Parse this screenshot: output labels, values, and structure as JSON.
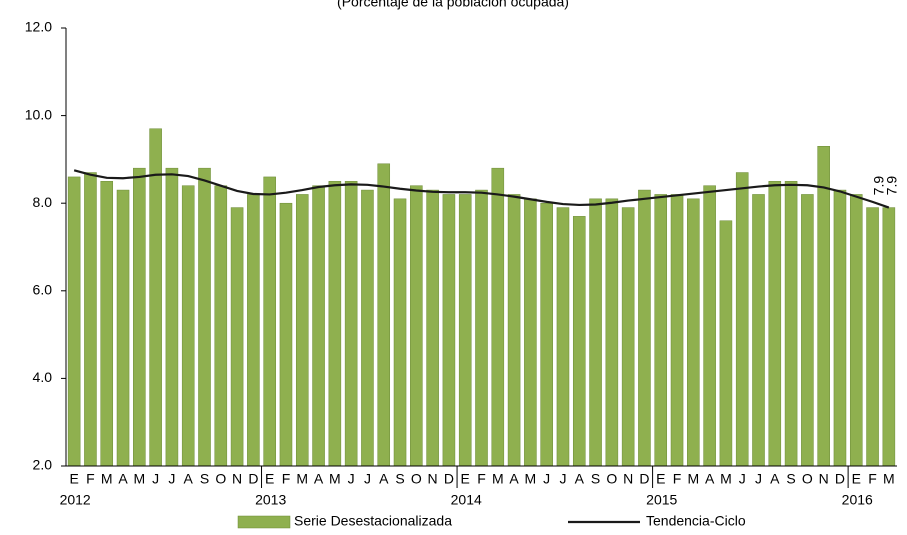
{
  "chart_data": {
    "type": "bar",
    "subtitle": "(Porcentaje de la población ocupada)",
    "categories": [
      "E",
      "F",
      "M",
      "A",
      "M",
      "J",
      "J",
      "A",
      "S",
      "O",
      "N",
      "D",
      "E",
      "F",
      "M",
      "A",
      "M",
      "J",
      "J",
      "A",
      "S",
      "O",
      "N",
      "D",
      "E",
      "F",
      "M",
      "A",
      "M",
      "J",
      "J",
      "A",
      "S",
      "O",
      "N",
      "D",
      "E",
      "F",
      "M",
      "A",
      "M",
      "J",
      "J",
      "A",
      "S",
      "O",
      "N",
      "D",
      "E",
      "F",
      "M"
    ],
    "year_labels": [
      "2012",
      "2013",
      "2014",
      "2015",
      "2016"
    ],
    "series": [
      {
        "name": "Serie Desestacionalizada",
        "type": "bar",
        "color": "#8fb04f",
        "values": [
          8.6,
          8.7,
          8.5,
          8.3,
          8.8,
          9.7,
          8.8,
          8.4,
          8.8,
          8.4,
          7.9,
          8.2,
          8.6,
          8.0,
          8.2,
          8.4,
          8.5,
          8.5,
          8.3,
          8.9,
          8.1,
          8.4,
          8.3,
          8.2,
          8.2,
          8.3,
          8.8,
          8.2,
          8.1,
          8.0,
          7.9,
          7.7,
          8.1,
          8.1,
          7.9,
          8.3,
          8.2,
          8.2,
          8.1,
          8.4,
          7.6,
          8.7,
          8.2,
          8.5,
          8.5,
          8.2,
          9.3,
          8.3,
          8.2,
          7.9,
          7.9
        ]
      },
      {
        "name": "Tendencia-Ciclo",
        "type": "line",
        "color": "#1a1a1a",
        "values": [
          8.75,
          8.65,
          8.58,
          8.57,
          8.6,
          8.65,
          8.66,
          8.62,
          8.52,
          8.4,
          8.28,
          8.21,
          8.2,
          8.24,
          8.3,
          8.37,
          8.41,
          8.43,
          8.42,
          8.38,
          8.33,
          8.29,
          8.26,
          8.25,
          8.25,
          8.24,
          8.2,
          8.15,
          8.09,
          8.03,
          7.98,
          7.96,
          7.97,
          8.01,
          8.06,
          8.1,
          8.14,
          8.18,
          8.22,
          8.26,
          8.3,
          8.34,
          8.38,
          8.41,
          8.42,
          8.41,
          8.36,
          8.27,
          8.15,
          8.03,
          7.9
        ]
      }
    ],
    "ylim": [
      2,
      12
    ],
    "yticks": [
      {
        "value": 2,
        "label": "2.0"
      },
      {
        "value": 4,
        "label": "4.0"
      },
      {
        "value": 6,
        "label": "6.0"
      },
      {
        "value": 8,
        "label": "8.0"
      },
      {
        "value": 10,
        "label": "10.0"
      },
      {
        "value": 12,
        "label": "12.0"
      }
    ],
    "grid": false,
    "legend": "bottom"
  }
}
